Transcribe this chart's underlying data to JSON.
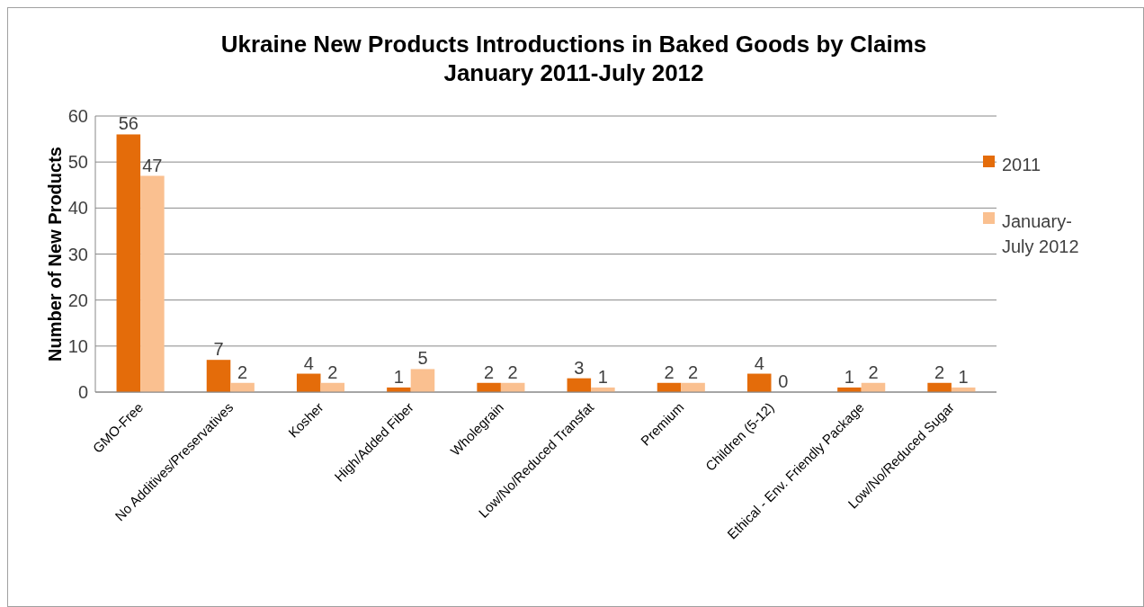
{
  "chart_data": {
    "type": "bar",
    "title": "Ukraine New Products Introductions in Baked Goods by Claims\nJanuary 2011-July 2012",
    "ylabel": "Number of New Products",
    "categories": [
      "GMO-Free",
      "No Additives/Preservatives",
      "Kosher",
      "High/Added Fiber",
      "Wholegrain",
      "Low/No/Reduced Transfat",
      "Premium",
      "Children (5-12)",
      "Ethical - Env. Friendly Package",
      "Low/No/Reduced Sugar"
    ],
    "series": [
      {
        "name": "2011",
        "color": "#e46c0a",
        "values": [
          56,
          7,
          4,
          1,
          2,
          3,
          2,
          4,
          1,
          2
        ]
      },
      {
        "name": "January-July 2012",
        "color": "#fac090",
        "values": [
          47,
          2,
          2,
          5,
          2,
          1,
          2,
          0,
          2,
          1
        ]
      }
    ],
    "ylim": [
      0,
      60
    ],
    "yticks": [
      0,
      10,
      20,
      30,
      40,
      50,
      60
    ],
    "grid": "y",
    "legend": "right",
    "data_labels": true
  }
}
